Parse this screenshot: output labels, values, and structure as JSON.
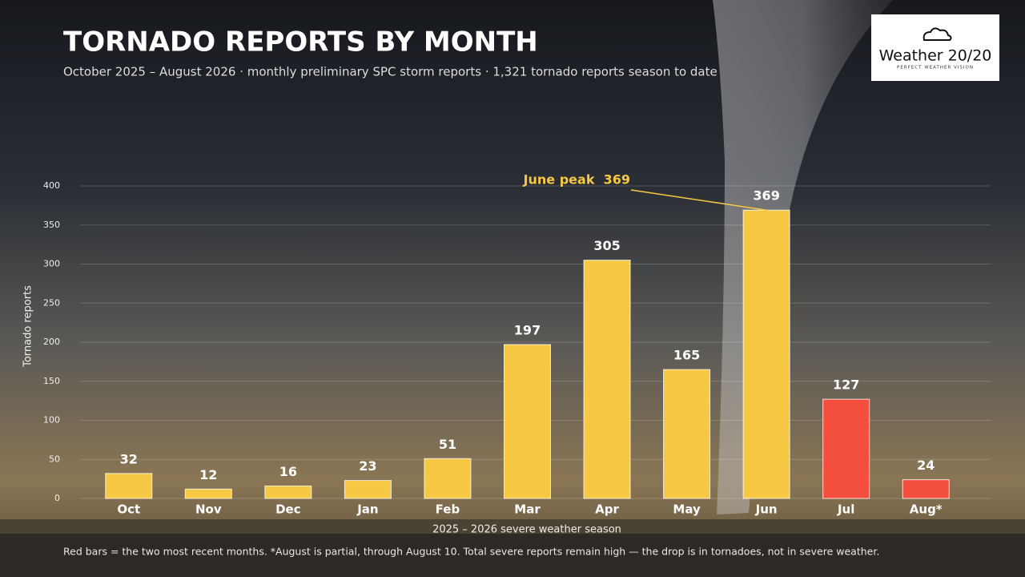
{
  "chart_data": {
    "type": "bar",
    "title": "TORNADO REPORTS BY MONTH",
    "subtitle": "October 2025 – August 2026  ·  monthly preliminary SPC storm reports  ·  1,321 tornado reports season to date",
    "y_label": "Tornado reports",
    "x_label": "2025 – 2026 severe weather season",
    "annotation": "June peak  369",
    "note": "Red bars = the two most recent months.  *August is partial, through August 10.  Total severe reports remain high — the drop is in tornadoes, not in severe weather.",
    "categories": [
      "Oct",
      "Nov",
      "Dec",
      "Jan",
      "Feb",
      "Mar",
      "Apr",
      "May",
      "Jun",
      "Jul",
      "Aug*"
    ],
    "values": [
      32,
      12,
      16,
      23,
      51,
      197,
      305,
      165,
      369,
      127,
      24
    ],
    "colors": [
      "#f7c843",
      "#f7c843",
      "#f7c843",
      "#f7c843",
      "#f7c843",
      "#f7c843",
      "#f7c843",
      "#f7c843",
      "#f7c843",
      "#f44e3f",
      "#f44e3f"
    ],
    "ylim": [
      0,
      400
    ],
    "yticks": [
      0,
      50,
      100,
      150,
      200,
      250,
      300,
      350,
      400
    ],
    "grid": true
  },
  "logo": {
    "name": "Weather 20/20",
    "tagline": "PERFECT WEATHER VISION"
  }
}
